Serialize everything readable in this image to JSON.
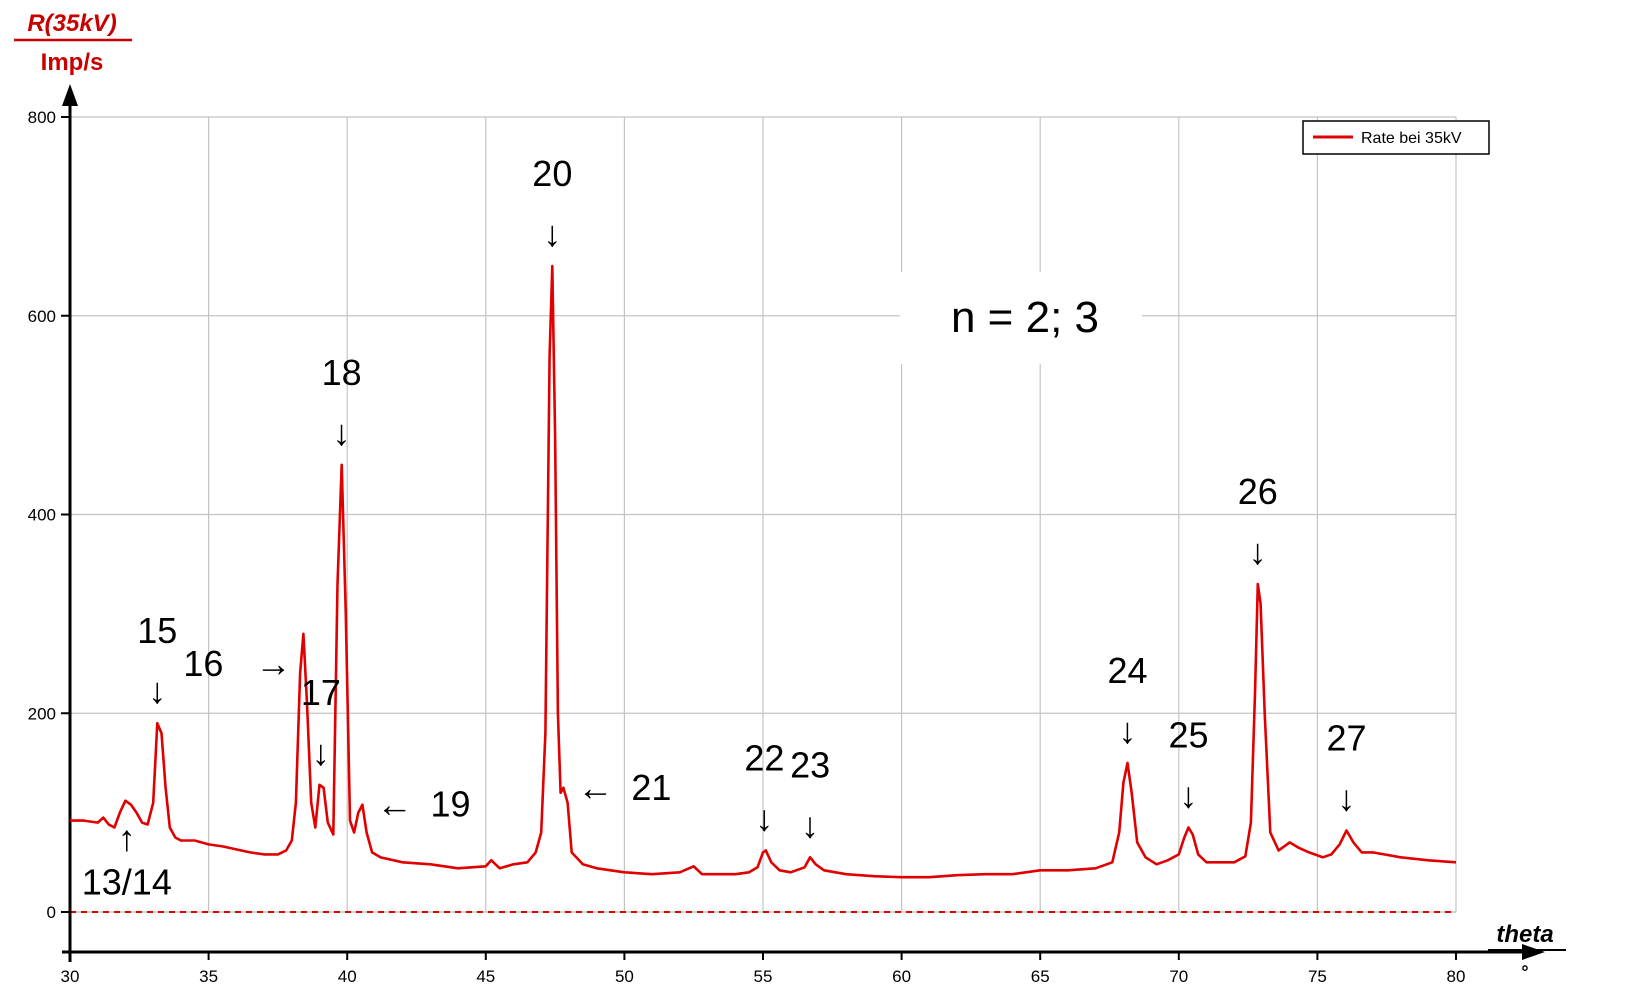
{
  "chart_data": {
    "type": "line",
    "ylabel": "R(35kV)",
    "yunit": "Imp/s",
    "xlabel": "theta",
    "xunit": "°",
    "xlim": [
      30,
      80
    ],
    "ylim": [
      0,
      800
    ],
    "x_ticks": [
      30,
      35,
      40,
      45,
      50,
      55,
      60,
      65,
      70,
      75,
      80
    ],
    "y_ticks": [
      0,
      200,
      400,
      600,
      800
    ],
    "grid": true,
    "legend_position": "top-right",
    "reference_line": {
      "y": 0,
      "style": "dashed"
    },
    "series": [
      {
        "name": "Rate bei 35kV",
        "color": "#e00000",
        "points": [
          [
            30,
            92
          ],
          [
            30.5,
            92
          ],
          [
            31,
            90
          ],
          [
            31.2,
            95
          ],
          [
            31.4,
            88
          ],
          [
            31.6,
            85
          ],
          [
            31.8,
            100
          ],
          [
            32,
            112
          ],
          [
            32.2,
            108
          ],
          [
            32.4,
            100
          ],
          [
            32.6,
            90
          ],
          [
            32.8,
            88
          ],
          [
            33,
            110
          ],
          [
            33.15,
            190
          ],
          [
            33.3,
            180
          ],
          [
            33.45,
            125
          ],
          [
            33.6,
            85
          ],
          [
            33.8,
            75
          ],
          [
            34,
            72
          ],
          [
            34.5,
            72
          ],
          [
            35,
            68
          ],
          [
            35.5,
            66
          ],
          [
            36,
            63
          ],
          [
            36.5,
            60
          ],
          [
            37,
            58
          ],
          [
            37.5,
            58
          ],
          [
            37.8,
            62
          ],
          [
            38,
            72
          ],
          [
            38.15,
            110
          ],
          [
            38.3,
            240
          ],
          [
            38.42,
            280
          ],
          [
            38.55,
            210
          ],
          [
            38.7,
            110
          ],
          [
            38.85,
            85
          ],
          [
            39,
            128
          ],
          [
            39.15,
            125
          ],
          [
            39.3,
            90
          ],
          [
            39.5,
            78
          ],
          [
            39.65,
            330
          ],
          [
            39.8,
            450
          ],
          [
            39.95,
            300
          ],
          [
            40.1,
            92
          ],
          [
            40.25,
            80
          ],
          [
            40.4,
            100
          ],
          [
            40.55,
            108
          ],
          [
            40.7,
            80
          ],
          [
            40.9,
            60
          ],
          [
            41.2,
            55
          ],
          [
            42,
            50
          ],
          [
            43,
            48
          ],
          [
            44,
            44
          ],
          [
            45,
            46
          ],
          [
            45.2,
            52
          ],
          [
            45.5,
            44
          ],
          [
            46,
            48
          ],
          [
            46.5,
            50
          ],
          [
            46.8,
            60
          ],
          [
            47,
            80
          ],
          [
            47.15,
            180
          ],
          [
            47.3,
            560
          ],
          [
            47.4,
            650
          ],
          [
            47.5,
            480
          ],
          [
            47.6,
            200
          ],
          [
            47.7,
            120
          ],
          [
            47.8,
            125
          ],
          [
            47.95,
            110
          ],
          [
            48.1,
            60
          ],
          [
            48.5,
            48
          ],
          [
            49,
            44
          ],
          [
            50,
            40
          ],
          [
            51,
            38
          ],
          [
            52,
            40
          ],
          [
            52.5,
            46
          ],
          [
            52.8,
            38
          ],
          [
            53,
            38
          ],
          [
            54,
            38
          ],
          [
            54.5,
            40
          ],
          [
            54.8,
            45
          ],
          [
            55,
            60
          ],
          [
            55.1,
            62
          ],
          [
            55.3,
            50
          ],
          [
            55.6,
            42
          ],
          [
            56,
            40
          ],
          [
            56.5,
            45
          ],
          [
            56.7,
            55
          ],
          [
            56.9,
            48
          ],
          [
            57.2,
            42
          ],
          [
            58,
            38
          ],
          [
            59,
            36
          ],
          [
            60,
            35
          ],
          [
            61,
            35
          ],
          [
            62,
            37
          ],
          [
            63,
            38
          ],
          [
            64,
            38
          ],
          [
            65,
            42
          ],
          [
            66,
            42
          ],
          [
            67,
            44
          ],
          [
            67.6,
            50
          ],
          [
            67.85,
            80
          ],
          [
            68,
            130
          ],
          [
            68.15,
            150
          ],
          [
            68.3,
            120
          ],
          [
            68.5,
            70
          ],
          [
            68.8,
            55
          ],
          [
            69.2,
            48
          ],
          [
            69.6,
            52
          ],
          [
            70,
            58
          ],
          [
            70.2,
            75
          ],
          [
            70.35,
            85
          ],
          [
            70.5,
            78
          ],
          [
            70.7,
            58
          ],
          [
            71,
            50
          ],
          [
            71.5,
            50
          ],
          [
            72,
            50
          ],
          [
            72.4,
            56
          ],
          [
            72.6,
            90
          ],
          [
            72.75,
            220
          ],
          [
            72.85,
            330
          ],
          [
            72.95,
            310
          ],
          [
            73.1,
            200
          ],
          [
            73.3,
            80
          ],
          [
            73.6,
            62
          ],
          [
            74,
            70
          ],
          [
            74.3,
            65
          ],
          [
            74.7,
            60
          ],
          [
            75.2,
            55
          ],
          [
            75.5,
            58
          ],
          [
            75.8,
            68
          ],
          [
            76.05,
            82
          ],
          [
            76.3,
            70
          ],
          [
            76.6,
            60
          ],
          [
            77,
            60
          ],
          [
            78,
            55
          ],
          [
            79,
            52
          ],
          [
            80,
            50
          ]
        ]
      }
    ],
    "annotations": [
      {
        "text": "13/14",
        "arrow": "↑",
        "x": 32.05,
        "y": 110
      },
      {
        "text": "15",
        "arrow": "↓",
        "x": 33.15,
        "y": 190
      },
      {
        "text": "16",
        "arrow": "→",
        "x": 38.42,
        "y": 280
      },
      {
        "text": "17",
        "arrow": "↓",
        "x": 39.05,
        "y": 128
      },
      {
        "text": "18",
        "arrow": "↓",
        "x": 39.8,
        "y": 450
      },
      {
        "text": "19",
        "arrow": "←",
        "x": 40.55,
        "y": 108
      },
      {
        "text": "20",
        "arrow": "↓",
        "x": 47.4,
        "y": 650
      },
      {
        "text": "21",
        "arrow": "←",
        "x": 47.8,
        "y": 125
      },
      {
        "text": "22",
        "arrow": "↓",
        "x": 55.05,
        "y": 62
      },
      {
        "text": "23",
        "arrow": "↓",
        "x": 56.7,
        "y": 55
      },
      {
        "text": "24",
        "arrow": "↓",
        "x": 68.15,
        "y": 150
      },
      {
        "text": "25",
        "arrow": "↓",
        "x": 70.35,
        "y": 85
      },
      {
        "text": "26",
        "arrow": "↓",
        "x": 72.85,
        "y": 330
      },
      {
        "text": "27",
        "arrow": "↓",
        "x": 76.05,
        "y": 82
      }
    ],
    "note": "n = 2; 3"
  }
}
